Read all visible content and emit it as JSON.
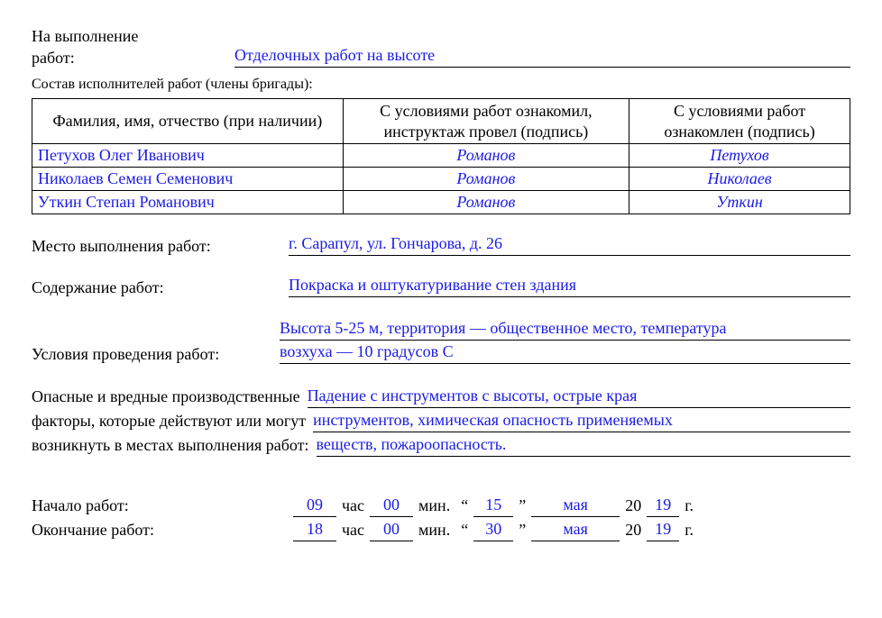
{
  "header": {
    "label_line1": "На выполнение",
    "label_line2": "работ:",
    "value": "Отделочных работ на высоте"
  },
  "team_note": "Состав исполнителей работ (члены бригады):",
  "table": {
    "headers": {
      "col1": "Фамилия, имя, отчество (при наличии)",
      "col2": "С условиями работ ознакомил, инструктаж провел (подпись)",
      "col3": "С условиями работ ознакомлен (подпись)"
    },
    "rows": [
      {
        "name": "Петухов Олег Иванович",
        "briefed_by": "Романов",
        "ack": "Петухов"
      },
      {
        "name": "Николаев Семен Семенович",
        "briefed_by": "Романов",
        "ack": "Николаев"
      },
      {
        "name": "Уткин Степан Романович",
        "briefed_by": "Романов",
        "ack": "Уткин"
      }
    ],
    "col_widths": [
      "38%",
      "35%",
      "27%"
    ]
  },
  "place": {
    "label": "Место выполнения работ:",
    "value": "г. Сарапул, ул. Гончарова, д. 26"
  },
  "content": {
    "label": "Содержание работ:",
    "value": "Покраска и оштукатуривание стен здания"
  },
  "conditions": {
    "label": "Условия проведения работ:",
    "line1": "Высота 5-25 м, территория — общественное место, температура",
    "line2": "возхуха — 10 градусов С"
  },
  "hazards": {
    "label_l1": "Опасные и вредные производственные",
    "label_l2": "факторы, которые действуют или могут",
    "label_l3": "возникнуть в местах выполнения работ:",
    "value_l1": "Падение с инструментов с высоты, острые края",
    "value_l2": "инструментов, химическая опасность применяемых",
    "value_l3": "веществ, пожароопасность."
  },
  "time": {
    "start_label": "Начало работ:",
    "end_label": "Окончание работ:",
    "unit_hour": "час",
    "unit_min": "мин.",
    "quote_open": "“",
    "quote_close": "”",
    "year_prefix": "20",
    "year_suffix": "г.",
    "start": {
      "hour": "09",
      "min": "00",
      "day": "15",
      "month": "мая",
      "yy": "19"
    },
    "end": {
      "hour": "18",
      "min": "00",
      "day": "30",
      "month": "мая",
      "yy": "19"
    }
  },
  "style": {
    "fill_color": "#1a1ae6",
    "text_color": "#000000",
    "bg_color": "#ffffff",
    "font_family": "Times New Roman",
    "base_font_size_pt": 14
  }
}
